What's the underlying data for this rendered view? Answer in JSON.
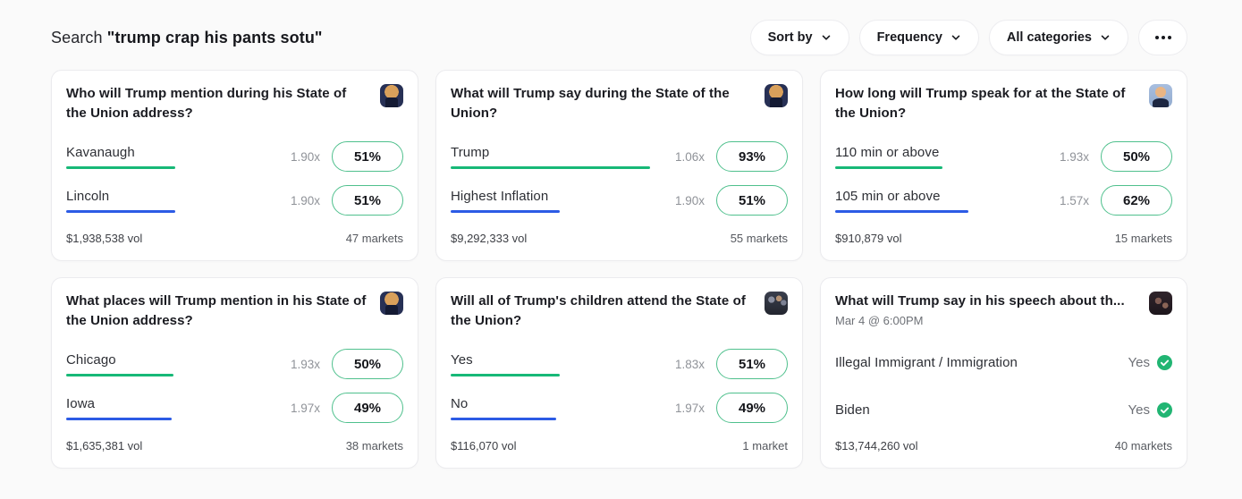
{
  "header": {
    "search_label": "Search",
    "search_query": "\"trump crap his pants sotu\"",
    "filters": [
      {
        "label": "Sort by"
      },
      {
        "label": "Frequency"
      },
      {
        "label": "All categories"
      }
    ],
    "more_icon": "ellipsis"
  },
  "colors": {
    "page_bg": "#fafafa",
    "card_bg": "#ffffff",
    "underline_green": "#17b877",
    "underline_blue": "#2c5be5",
    "pill_border_green": "#4fc08d",
    "check_green": "#21b573"
  },
  "cards": [
    {
      "title": "Who will Trump mention during his State of the Union address?",
      "subtitle": "",
      "avatar": "trump-podium",
      "outcomes": [
        {
          "label": "Kavanaugh",
          "multiplier": "1.90x",
          "percent": "51%",
          "pct": 51,
          "underline": "green"
        },
        {
          "label": "Lincoln",
          "multiplier": "1.90x",
          "percent": "51%",
          "pct": 51,
          "underline": "blue"
        }
      ],
      "volume": "$1,938,538 vol",
      "markets": "47 markets"
    },
    {
      "title": "What will Trump say during the State of the Union?",
      "subtitle": "",
      "avatar": "trump-podium",
      "outcomes": [
        {
          "label": "Trump",
          "multiplier": "1.06x",
          "percent": "93%",
          "pct": 93,
          "underline": "green"
        },
        {
          "label": "Highest Inflation",
          "multiplier": "1.90x",
          "percent": "51%",
          "pct": 51,
          "underline": "blue"
        }
      ],
      "volume": "$9,292,333 vol",
      "markets": "55 markets"
    },
    {
      "title": "How long will Trump speak for at the State of the Union?",
      "subtitle": "",
      "avatar": "trump-portrait",
      "outcomes": [
        {
          "label": "110 min or above",
          "multiplier": "1.93x",
          "percent": "50%",
          "pct": 50,
          "underline": "green"
        },
        {
          "label": "105 min or above",
          "multiplier": "1.57x",
          "percent": "62%",
          "pct": 62,
          "underline": "blue"
        }
      ],
      "volume": "$910,879 vol",
      "markets": "15 markets"
    },
    {
      "title": "What places will Trump mention in his State of the Union address?",
      "subtitle": "",
      "avatar": "trump-podium",
      "outcomes": [
        {
          "label": "Chicago",
          "multiplier": "1.93x",
          "percent": "50%",
          "pct": 50,
          "underline": "green"
        },
        {
          "label": "Iowa",
          "multiplier": "1.97x",
          "percent": "49%",
          "pct": 49,
          "underline": "blue"
        }
      ],
      "volume": "$1,635,381 vol",
      "markets": "38 markets"
    },
    {
      "title": "Will all of Trump's children attend the State of the Union?",
      "subtitle": "",
      "avatar": "trump-family",
      "outcomes": [
        {
          "label": "Yes",
          "multiplier": "1.83x",
          "percent": "51%",
          "pct": 51,
          "underline": "green"
        },
        {
          "label": "No",
          "multiplier": "1.97x",
          "percent": "49%",
          "pct": 49,
          "underline": "blue"
        }
      ],
      "volume": "$116,070 vol",
      "markets": "1 market"
    },
    {
      "title": "What will Trump say in his speech about th...",
      "subtitle": "Mar 4 @ 6:00PM",
      "avatar": "congress",
      "outcomes": [
        {
          "label": "Illegal Immigrant / Immigration",
          "result": "Yes"
        },
        {
          "label": "Biden",
          "result": "Yes"
        }
      ],
      "volume": "$13,744,260 vol",
      "markets": "40 markets"
    }
  ]
}
